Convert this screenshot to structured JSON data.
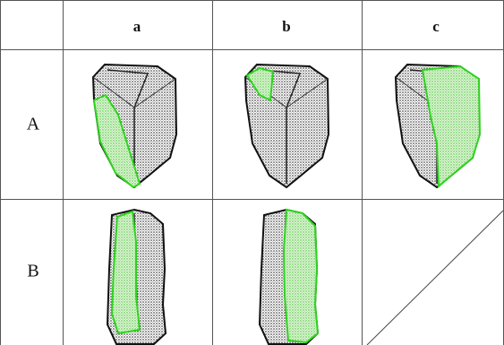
{
  "table": {
    "header": [
      "a",
      "b",
      "c"
    ],
    "rows": [
      {
        "label": "A"
      },
      {
        "label": "B"
      }
    ]
  }
}
